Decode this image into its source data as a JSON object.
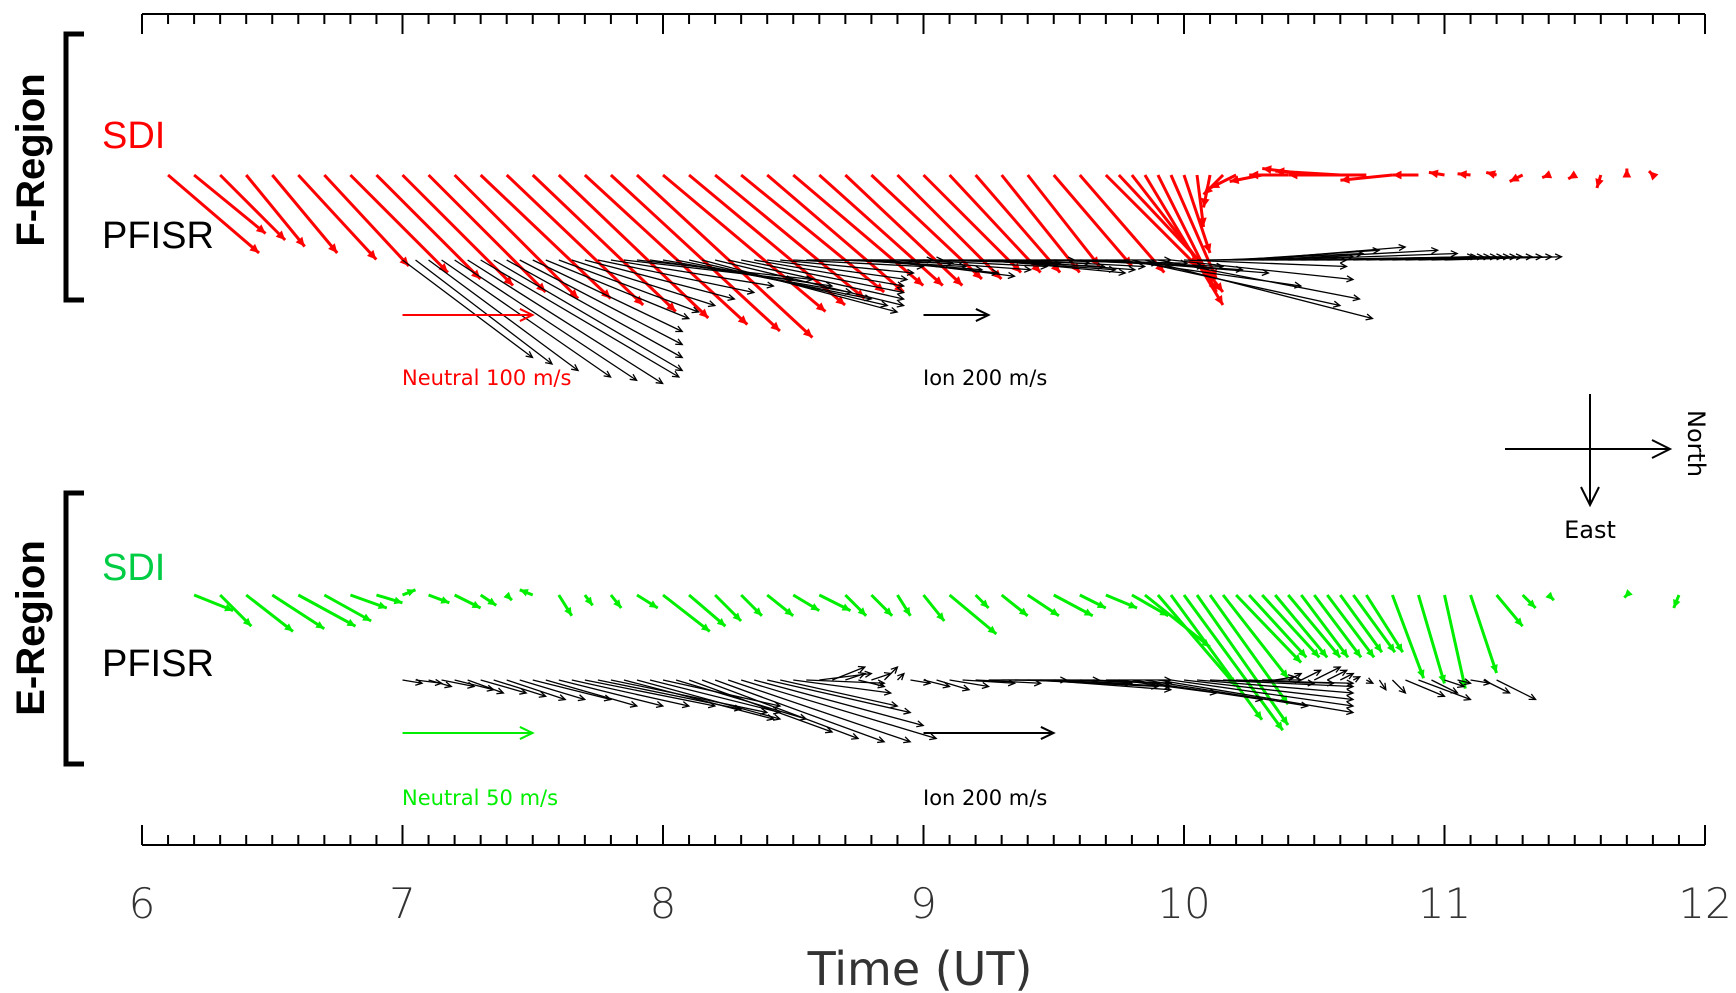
{
  "chart_data": {
    "type": "vector",
    "xlabel": "Time (UT)",
    "xlim": [
      6,
      12
    ],
    "xticks": [
      "6",
      "7",
      "8",
      "9",
      "10",
      "11",
      "12"
    ],
    "panels": [
      {
        "region": "F-Region",
        "series": [
          {
            "name": "SDI",
            "color": "#ff0000",
            "scale_label": "Neutral 100 m/s",
            "scale_value": 100,
            "unit": "m/s",
            "times": [
              6.1,
              6.2,
              6.3,
              6.4,
              6.5,
              6.6,
              6.7,
              6.8,
              6.9,
              7.0,
              7.1,
              7.2,
              7.3,
              7.4,
              7.5,
              7.6,
              7.7,
              7.8,
              7.9,
              8.0,
              8.1,
              8.2,
              8.3,
              8.4,
              8.5,
              8.6,
              8.7,
              8.8,
              8.9,
              9.0,
              9.1,
              9.2,
              9.3,
              9.4,
              9.5,
              9.6,
              9.7,
              9.75,
              9.8,
              9.85,
              9.9,
              9.95,
              10.0,
              10.05,
              10.1,
              10.15,
              10.2,
              10.3,
              10.4,
              10.5,
              10.6,
              10.7,
              10.8,
              10.9,
              11.0,
              11.1,
              11.2,
              11.3,
              11.4,
              11.5,
              11.6,
              11.7,
              11.8,
              11.9
            ],
            "north": [
              70,
              55,
              50,
              45,
              50,
              60,
              65,
              75,
              80,
              85,
              90,
              95,
              100,
              105,
              110,
              115,
              125,
              130,
              135,
              125,
              120,
              115,
              110,
              105,
              100,
              95,
              90,
              85,
              80,
              75,
              70,
              65,
              60,
              55,
              60,
              65,
              70,
              75,
              70,
              60,
              45,
              35,
              20,
              5,
              -5,
              -15,
              -20,
              -25,
              -30,
              -40,
              -50,
              -60,
              -40,
              -20,
              -12,
              -10,
              -8,
              -10,
              -5,
              -5,
              -3,
              0,
              -3,
              0
            ],
            "east": [
              -60,
              -45,
              -50,
              -55,
              -60,
              -65,
              -70,
              -75,
              -80,
              -85,
              -90,
              -95,
              -95,
              -100,
              -105,
              -110,
              -115,
              -120,
              -125,
              -105,
              -100,
              -95,
              -90,
              -90,
              -85,
              -85,
              -85,
              -80,
              -80,
              -75,
              -75,
              -75,
              -75,
              -70,
              -70,
              -75,
              -70,
              -80,
              -90,
              -100,
              -90,
              -80,
              -60,
              -40,
              -25,
              -15,
              -10,
              -5,
              0,
              5,
              3,
              0,
              -4,
              0,
              2,
              1,
              2,
              -5,
              -2,
              -3,
              -10,
              5,
              3,
              0
            ]
          },
          {
            "name": "PFISR",
            "color": "#000000",
            "scale_label": "Ion 200 m/s",
            "scale_value": 200,
            "unit": "m/s",
            "times": [
              7.0,
              7.05,
              7.1,
              7.15,
              7.2,
              7.25,
              7.3,
              7.35,
              7.4,
              7.45,
              7.5,
              7.55,
              7.6,
              7.65,
              7.7,
              7.75,
              7.8,
              7.85,
              7.9,
              7.95,
              8.0,
              8.05,
              8.1,
              8.15,
              8.2,
              8.25,
              8.3,
              8.35,
              8.4,
              8.45,
              8.5,
              8.55,
              8.6,
              8.65,
              8.7,
              8.75,
              8.8,
              8.85,
              8.9,
              8.95,
              9.0,
              9.05,
              9.1,
              9.15,
              9.2,
              9.25,
              9.3,
              9.35,
              9.4,
              9.45,
              9.5,
              9.55,
              9.6,
              9.65,
              9.7,
              9.75,
              9.8,
              9.85,
              9.9,
              9.95,
              10.0,
              10.05,
              10.1,
              10.15,
              10.2,
              10.25,
              10.3,
              10.35,
              10.4,
              10.45,
              10.5,
              10.55,
              10.6,
              10.65,
              10.7,
              10.75,
              10.8,
              10.85,
              10.9,
              10.95,
              11.0
            ],
            "north": [
              200,
              210,
              230,
              260,
              280,
              300,
              305,
              290,
              270,
              250,
              230,
              220,
              215,
              220,
              230,
              240,
              250,
              260,
              270,
              280,
              290,
              300,
              305,
              300,
              290,
              270,
              250,
              230,
              215,
              205,
              200,
              195,
              190,
              185,
              185,
              190,
              195,
              200,
              205,
              210,
              210,
              212,
              215,
              218,
              215,
              210,
              205,
              200,
              200,
              200,
              205,
              210,
              220,
              230,
              250,
              280,
              320,
              350,
              310,
              280,
              250,
              230,
              220,
              215,
              220,
              240,
              270,
              280,
              285,
              270,
              260,
              250,
              240,
              230,
              220,
              210,
              200,
              195,
              190,
              185,
              180
            ],
            "east": [
              -150,
              -160,
              -170,
              -180,
              -185,
              -190,
              -180,
              -170,
              -150,
              -130,
              -110,
              -90,
              -80,
              -70,
              -60,
              -50,
              -40,
              -30,
              -30,
              -40,
              -50,
              -60,
              -70,
              -80,
              -70,
              -60,
              -50,
              -40,
              -30,
              -20,
              -10,
              0,
              0,
              -5,
              -10,
              -15,
              -20,
              -25,
              -15,
              -10,
              -5,
              0,
              -5,
              -10,
              -15,
              -20,
              -15,
              -10,
              -5,
              0,
              -5,
              -10,
              -10,
              -15,
              -20,
              -40,
              -70,
              -90,
              -60,
              -30,
              -10,
              0,
              5,
              10,
              15,
              20,
              15,
              10,
              5,
              5,
              5,
              5,
              5,
              5,
              5,
              5,
              5,
              5,
              5,
              5,
              5
            ]
          }
        ]
      },
      {
        "region": "E-Region",
        "series": [
          {
            "name": "SDI",
            "color": "#00ee00",
            "scale_label": "Neutral 50 m/s",
            "scale_value": 50,
            "unit": "m/s",
            "times": [
              6.2,
              6.3,
              6.4,
              6.5,
              6.6,
              6.7,
              6.8,
              6.9,
              7.0,
              7.1,
              7.2,
              7.3,
              7.4,
              7.5,
              7.6,
              7.7,
              7.8,
              7.9,
              8.0,
              8.1,
              8.2,
              8.3,
              8.4,
              8.5,
              8.6,
              8.7,
              8.8,
              8.9,
              9.0,
              9.1,
              9.2,
              9.3,
              9.4,
              9.5,
              9.6,
              9.7,
              9.8,
              9.85,
              9.9,
              9.95,
              10.0,
              10.05,
              10.1,
              10.15,
              10.2,
              10.25,
              10.3,
              10.35,
              10.4,
              10.45,
              10.5,
              10.55,
              10.6,
              10.65,
              10.7,
              10.8,
              10.9,
              11.0,
              11.1,
              11.2,
              11.3,
              11.4,
              11.5,
              11.6,
              11.7,
              11.8,
              11.9
            ],
            "north": [
              15,
              12,
              18,
              20,
              22,
              18,
              14,
              10,
              5,
              8,
              10,
              6,
              2,
              -5,
              5,
              3,
              4,
              8,
              18,
              14,
              10,
              8,
              10,
              10,
              12,
              8,
              8,
              5,
              8,
              18,
              5,
              10,
              12,
              15,
              10,
              12,
              14,
              25,
              30,
              35,
              38,
              35,
              30,
              25,
              25,
              22,
              22,
              20,
              20,
              18,
              18,
              18,
              16,
              16,
              14,
              12,
              10,
              8,
              10,
              10,
              5,
              2,
              0,
              0,
              -1,
              0,
              -2
            ],
            "east": [
              -6,
              -12,
              -14,
              -13,
              -12,
              -10,
              -5,
              -3,
              2,
              -3,
              -5,
              -4,
              -2,
              2,
              -8,
              -4,
              -5,
              -5,
              -14,
              -12,
              -10,
              -8,
              -8,
              -6,
              -6,
              -8,
              -8,
              -8,
              -10,
              -15,
              -5,
              -8,
              -8,
              -8,
              -5,
              -5,
              -8,
              -20,
              -35,
              -48,
              -52,
              -50,
              -42,
              -32,
              -26,
              -24,
              -24,
              -24,
              -24,
              -24,
              -24,
              -24,
              -22,
              -22,
              -22,
              -32,
              -34,
              -36,
              -30,
              -12,
              -5,
              -2,
              0,
              0,
              -1,
              0,
              -5
            ]
          },
          {
            "name": "PFISR",
            "color": "#000000",
            "scale_label": "Ion 200 m/s",
            "scale_value": 200,
            "unit": "m/s",
            "times": [
              7.0,
              7.05,
              7.1,
              7.15,
              7.2,
              7.25,
              7.3,
              7.35,
              7.4,
              7.45,
              7.5,
              7.55,
              7.6,
              7.65,
              7.7,
              7.75,
              7.8,
              7.85,
              7.9,
              7.95,
              8.0,
              8.05,
              8.1,
              8.15,
              8.2,
              8.25,
              8.3,
              8.35,
              8.4,
              8.45,
              8.5,
              8.55,
              8.6,
              8.65,
              8.7,
              8.75,
              8.8,
              8.85,
              8.9,
              8.95,
              9.0,
              9.05,
              9.1,
              9.15,
              9.2,
              9.25,
              9.3,
              9.35,
              9.4,
              9.45,
              9.5,
              9.55,
              9.6,
              9.65,
              9.7,
              9.75,
              9.8,
              9.85,
              9.9,
              9.95,
              10.0,
              10.05,
              10.1,
              10.15,
              10.2,
              10.25,
              10.3,
              10.35,
              10.4,
              10.45,
              10.5,
              10.55,
              10.6,
              10.65,
              10.7,
              10.75,
              10.8,
              10.85,
              10.9,
              10.95,
              11.0,
              11.05,
              11.1,
              11.15,
              11.2
            ],
            "north": [
              30,
              40,
              35,
              50,
              60,
              55,
              70,
              80,
              90,
              100,
              120,
              140,
              160,
              180,
              200,
              220,
              240,
              230,
              220,
              200,
              180,
              200,
              220,
              240,
              260,
              280,
              300,
              260,
              220,
              180,
              150,
              120,
              80,
              50,
              30,
              40,
              30,
              20,
              10,
              30,
              40,
              50,
              60,
              80,
              100,
              120,
              150,
              180,
              200,
              200,
              180,
              160,
              140,
              120,
              100,
              150,
              200,
              250,
              300,
              280,
              260,
              240,
              220,
              200,
              150,
              100,
              60,
              30,
              20,
              30,
              40,
              30,
              20,
              10,
              10,
              10,
              20,
              60,
              80,
              40,
              30,
              20,
              30,
              40,
              60
            ],
            "east": [
              -5,
              -5,
              -10,
              -10,
              -15,
              -20,
              -20,
              -25,
              -30,
              -30,
              -30,
              -40,
              -40,
              -40,
              -40,
              -45,
              -50,
              -60,
              -60,
              -50,
              -40,
              -60,
              -80,
              -90,
              -95,
              -95,
              -90,
              -70,
              -50,
              -40,
              -20,
              -5,
              10,
              20,
              10,
              -10,
              10,
              20,
              10,
              -5,
              -10,
              -15,
              -10,
              -5,
              -5,
              0,
              0,
              -5,
              -10,
              -15,
              -10,
              -5,
              -5,
              -5,
              0,
              -20,
              -30,
              -40,
              -50,
              -40,
              -30,
              -20,
              -10,
              -5,
              -5,
              -5,
              0,
              5,
              10,
              15,
              20,
              15,
              10,
              5,
              -5,
              -15,
              -20,
              -25,
              -30,
              -20,
              -10,
              -5,
              -5,
              -20,
              -30
            ]
          }
        ]
      }
    ],
    "compass": {
      "right": "North",
      "down": "East"
    }
  }
}
